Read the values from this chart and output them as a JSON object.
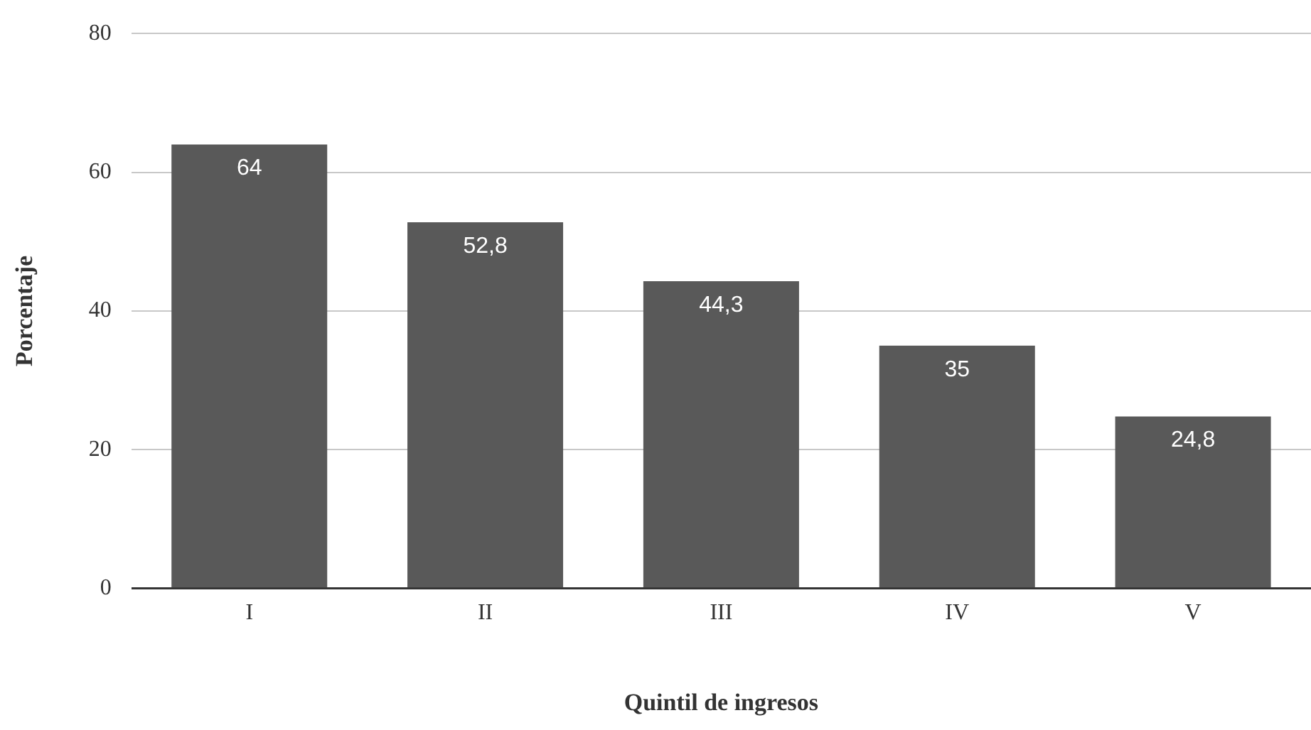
{
  "chart_data": {
    "type": "bar",
    "xlabel": "Quintil de ingresos",
    "ylabel": "Porcentaje",
    "categories": [
      "I",
      "II",
      "III",
      "IV",
      "V"
    ],
    "values": [
      64,
      52.8,
      44.3,
      35,
      24.8
    ],
    "value_labels": [
      "64",
      "52,8",
      "44,3",
      "35",
      "24,8"
    ],
    "color": "#595959",
    "ylim": [
      0,
      80
    ],
    "yticks": [
      0,
      20,
      40,
      60,
      80
    ],
    "grid": "y",
    "legend": false
  }
}
